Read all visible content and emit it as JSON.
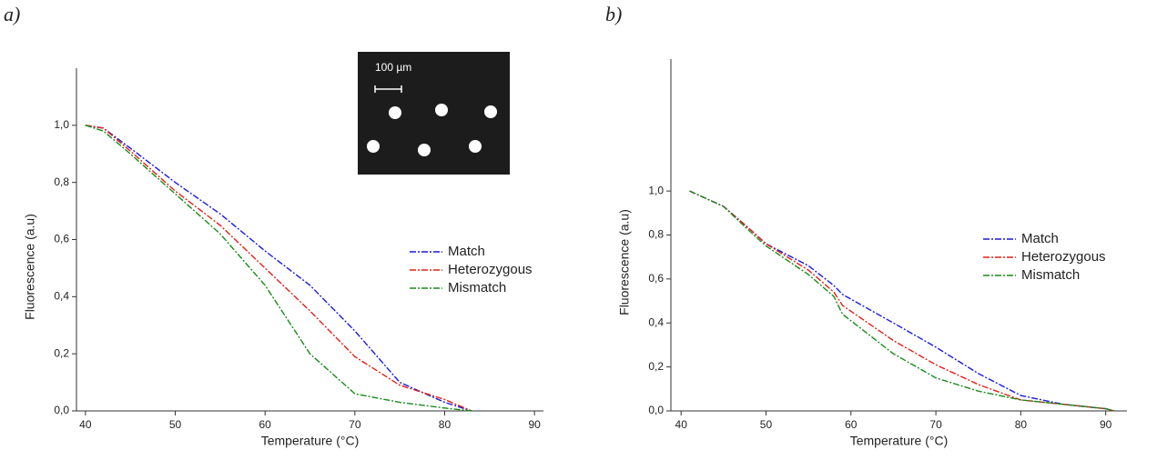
{
  "chart_data": [
    {
      "type": "line",
      "panel_label": "a)",
      "x_label": "Temperature (°C)",
      "y_label": "Fluorescence (a.u)",
      "annotation": "100 µm",
      "legend": "right",
      "x": [
        40,
        42,
        45,
        50,
        55,
        60,
        65,
        70,
        75,
        80,
        83
      ],
      "series": [
        {
          "name": "Match",
          "color": "#1a1adf",
          "values": [
            1.0,
            0.99,
            0.92,
            0.8,
            0.69,
            0.56,
            0.44,
            0.28,
            0.1,
            0.03,
            0.0
          ]
        },
        {
          "name": "Heterozygous",
          "color": "#e0201a",
          "values": [
            1.0,
            0.99,
            0.91,
            0.77,
            0.65,
            0.5,
            0.35,
            0.19,
            0.09,
            0.04,
            0.0
          ]
        },
        {
          "name": "Mismatch",
          "color": "#1a8a1a",
          "values": [
            1.0,
            0.98,
            0.9,
            0.76,
            0.62,
            0.44,
            0.2,
            0.06,
            0.03,
            0.01,
            0.0
          ]
        }
      ],
      "xlim": [
        39,
        91
      ],
      "xticks": [
        40,
        50,
        60,
        70,
        80,
        90
      ],
      "ylim": [
        0,
        1.2
      ],
      "yticks": [
        {
          "value": 0,
          "label": "0,0"
        },
        {
          "value": 0.2,
          "label": "0,2"
        },
        {
          "value": 0.4,
          "label": "0,4"
        },
        {
          "value": 0.6,
          "label": "0,6"
        },
        {
          "value": 0.8,
          "label": "0,8"
        },
        {
          "value": 1.0,
          "label": "1,0"
        }
      ]
    },
    {
      "type": "line",
      "panel_label": "b)",
      "x_label": "Temperature (°C)",
      "y_label": "Fluorescence (a.u)",
      "legend": "right",
      "x": [
        41,
        45,
        48,
        50,
        55,
        58,
        59,
        65,
        70,
        75,
        80,
        85,
        90,
        91
      ],
      "series": [
        {
          "name": "Match",
          "color": "#1a1adf",
          "values": [
            1.0,
            0.93,
            0.83,
            0.76,
            0.66,
            0.57,
            0.53,
            0.4,
            0.29,
            0.17,
            0.07,
            0.03,
            0.01,
            0.0
          ]
        },
        {
          "name": "Heterozygous",
          "color": "#e0201a",
          "values": [
            1.0,
            0.93,
            0.83,
            0.76,
            0.64,
            0.54,
            0.48,
            0.32,
            0.21,
            0.12,
            0.05,
            0.03,
            0.01,
            0.0
          ]
        },
        {
          "name": "Mismatch",
          "color": "#1a8a1a",
          "values": [
            1.0,
            0.93,
            0.82,
            0.75,
            0.62,
            0.52,
            0.44,
            0.26,
            0.15,
            0.09,
            0.05,
            0.03,
            0.01,
            0.0
          ]
        }
      ],
      "xlim": [
        38.8,
        92.5
      ],
      "xticks": [
        40,
        50,
        60,
        70,
        80,
        90
      ],
      "ylim": [
        0,
        1.6
      ],
      "yticks": [
        {
          "value": 0,
          "label": "0,0"
        },
        {
          "value": 0.2,
          "label": "0,2"
        },
        {
          "value": 0.4,
          "label": "0,4"
        },
        {
          "value": 0.6,
          "label": "0,6"
        },
        {
          "value": 0.8,
          "label": "0,8"
        },
        {
          "value": 1.0,
          "label": "1,0"
        }
      ]
    }
  ]
}
